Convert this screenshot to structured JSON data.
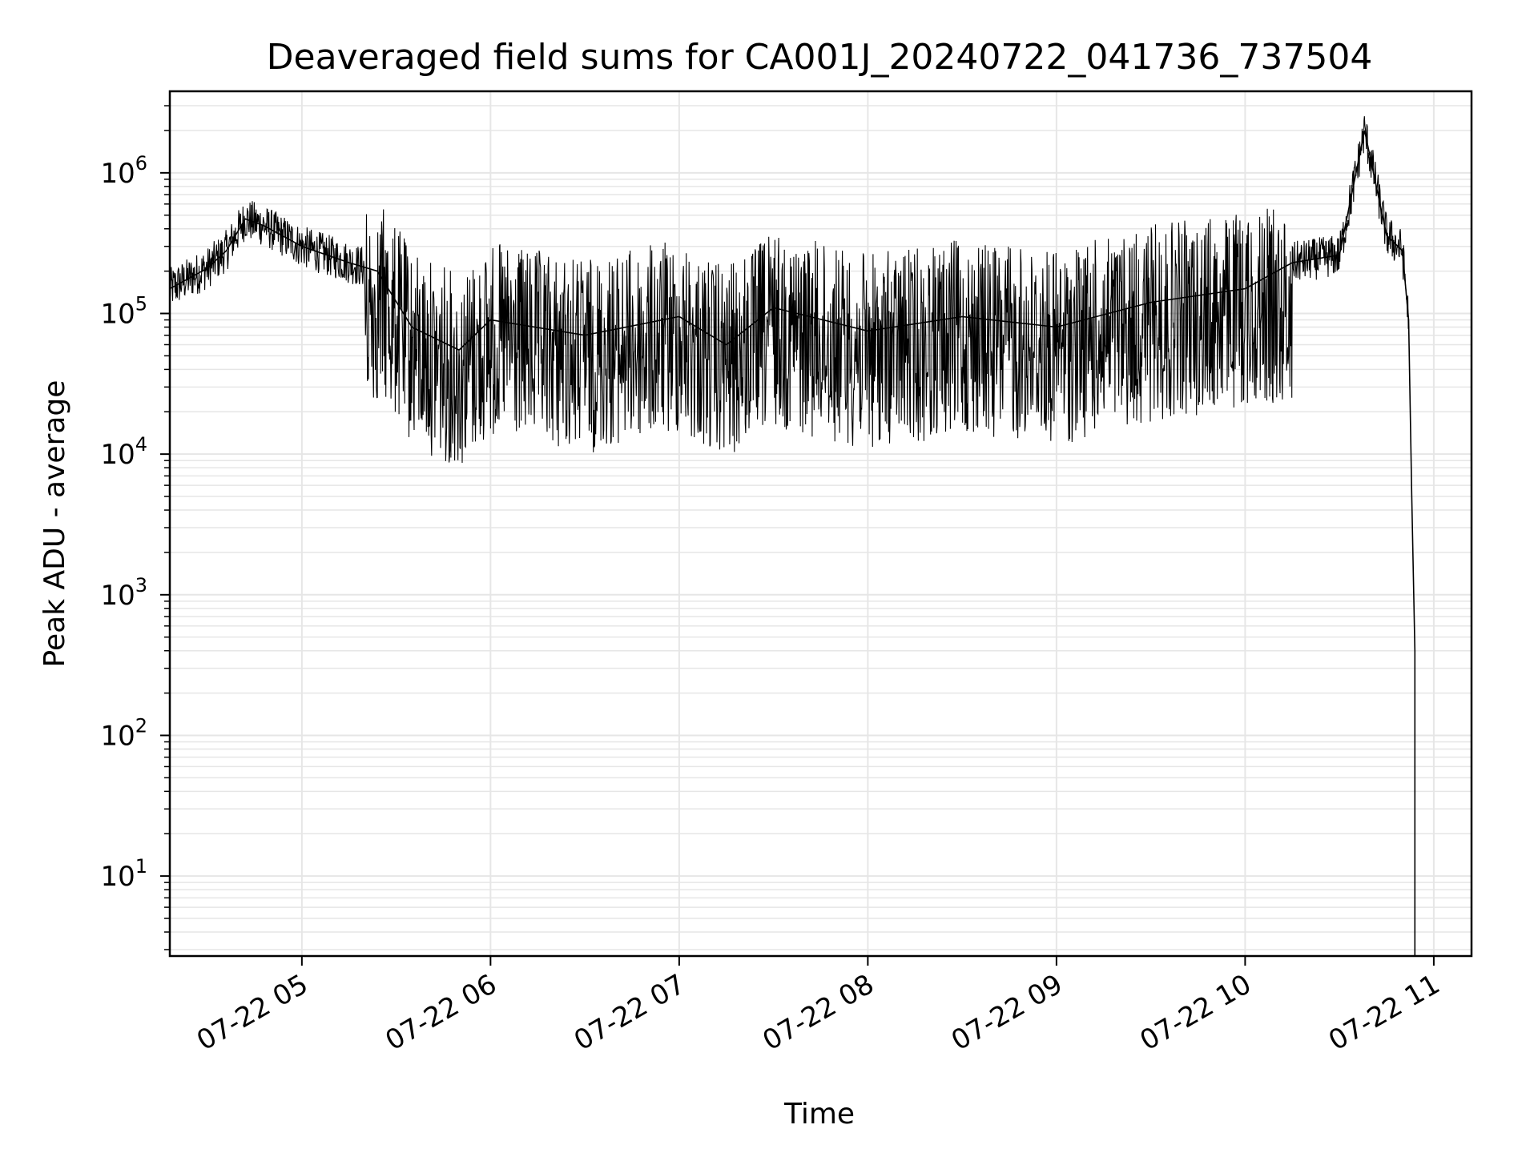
{
  "chart_data": {
    "type": "line",
    "title": "Deaveraged field sums for CA001J_20240722_041736_737504",
    "xlabel": "Time",
    "ylabel": "Peak ADU - average",
    "yscale": "log",
    "ylim": [
      2.7,
      3800000
    ],
    "xlim": [
      "2024-07-22 04:18",
      "2024-07-22 11:12"
    ],
    "x_tick_labels": [
      "07-22 05",
      "07-22 06",
      "07-22 07",
      "07-22 08",
      "07-22 09",
      "07-22 10",
      "07-22 11"
    ],
    "y_tick_labels": [
      {
        "base": "10",
        "exp": "1"
      },
      {
        "base": "10",
        "exp": "2"
      },
      {
        "base": "10",
        "exp": "3"
      },
      {
        "base": "10",
        "exp": "4"
      },
      {
        "base": "10",
        "exp": "5"
      },
      {
        "base": "10",
        "exp": "6"
      }
    ],
    "grid": true,
    "line_color": "#000000",
    "grid_color": "#e6e6e6",
    "series": [
      {
        "points": [
          [
            "2024-07-22 04:18",
            150000
          ],
          [
            "2024-07-22 04:30",
            210000
          ],
          [
            "2024-07-22 04:36",
            280000
          ],
          [
            "2024-07-22 04:42",
            470000
          ],
          [
            "2024-07-22 04:48",
            420000
          ],
          [
            "2024-07-22 05:00",
            300000
          ],
          [
            "2024-07-22 05:15",
            230000
          ],
          [
            "2024-07-22 05:24",
            200000
          ],
          [
            "2024-07-22 05:35",
            80000
          ],
          [
            "2024-07-22 05:50",
            55000
          ],
          [
            "2024-07-22 06:00",
            90000
          ],
          [
            "2024-07-22 06:30",
            70000
          ],
          [
            "2024-07-22 07:00",
            95000
          ],
          [
            "2024-07-22 07:15",
            60000
          ],
          [
            "2024-07-22 07:30",
            110000
          ],
          [
            "2024-07-22 08:00",
            75000
          ],
          [
            "2024-07-22 08:30",
            95000
          ],
          [
            "2024-07-22 09:00",
            80000
          ],
          [
            "2024-07-22 09:30",
            120000
          ],
          [
            "2024-07-22 10:00",
            150000
          ],
          [
            "2024-07-22 10:15",
            230000
          ],
          [
            "2024-07-22 10:30",
            260000
          ],
          [
            "2024-07-22 10:38",
            2000000
          ],
          [
            "2024-07-22 10:45",
            360000
          ],
          [
            "2024-07-22 10:50",
            280000
          ],
          [
            "2024-07-22 10:52",
            90000
          ],
          [
            "2024-07-22 10:53",
            5000
          ],
          [
            "2024-07-22 10:54",
            400
          ],
          [
            "2024-07-22 10:54",
            2.7
          ]
        ]
      }
    ]
  }
}
